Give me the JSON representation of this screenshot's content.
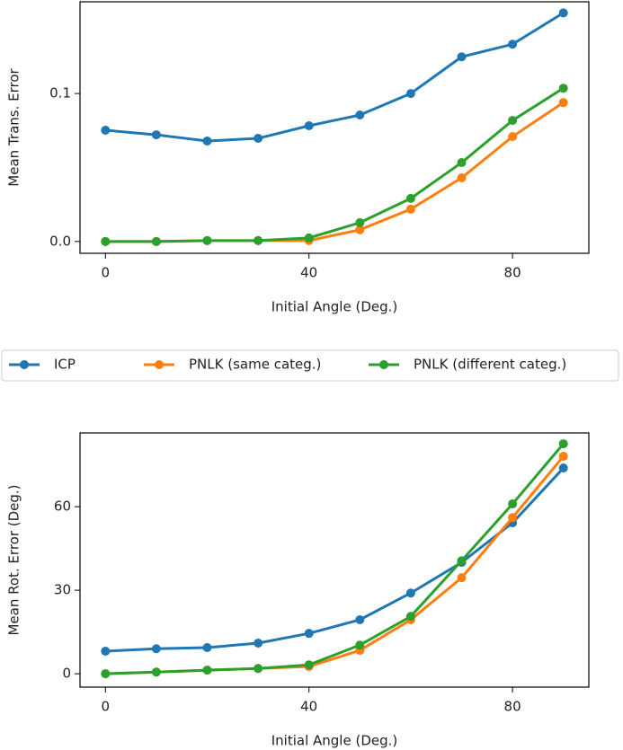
{
  "chart_data": [
    {
      "type": "line",
      "xlabel": "Initial Angle (Deg.)",
      "ylabel": "Mean Trans. Error",
      "x": [
        0,
        10,
        20,
        30,
        40,
        50,
        60,
        70,
        80,
        90
      ],
      "xlim": [
        -5,
        95
      ],
      "xticks": [
        0,
        40,
        80
      ],
      "ylim": [
        -0.008,
        0.162
      ],
      "yticks": [
        {
          "value": 0,
          "label": "0.0"
        },
        0.1
      ],
      "series": [
        {
          "name": "ICP",
          "color": "#1f77b4",
          "values": [
            0.0752,
            0.0721,
            0.0679,
            0.0697,
            0.0782,
            0.0855,
            0.1,
            0.1248,
            0.1333,
            0.1545
          ]
        },
        {
          "name": "PNLK (same categ.)",
          "color": "#ff7f0e",
          "values": [
            0,
            0,
            0.0006,
            0.0006,
            0.0006,
            0.0079,
            0.0218,
            0.043,
            0.0709,
            0.0939
          ]
        },
        {
          "name": "PNLK (different categ.)",
          "color": "#2ca02c",
          "values": [
            0,
            0,
            0.0006,
            0.0006,
            0.0024,
            0.0127,
            0.0291,
            0.0533,
            0.0818,
            0.1036
          ]
        }
      ]
    },
    {
      "type": "line",
      "xlabel": "Initial Angle (Deg.)",
      "ylabel": "Mean Rot. Error (Deg.)",
      "x": [
        0,
        10,
        20,
        30,
        40,
        50,
        60,
        70,
        80,
        90
      ],
      "xlim": [
        -5,
        95
      ],
      "xticks": [
        0,
        40,
        80
      ],
      "ylim": [
        -4.8,
        86.5
      ],
      "yticks": [
        0,
        30,
        60
      ],
      "series": [
        {
          "color": "#1f77b4",
          "values": [
            8.1,
            9.0,
            9.4,
            11.0,
            14.5,
            19.4,
            29.0,
            40.0,
            54.2,
            73.9
          ]
        },
        {
          "color": "#ff7f0e",
          "values": [
            0,
            0.6,
            1.3,
            1.9,
            2.6,
            8.4,
            19.4,
            34.5,
            56.1,
            78.1
          ]
        },
        {
          "color": "#2ca02c",
          "values": [
            0,
            0.6,
            1.3,
            1.9,
            3.2,
            10.3,
            20.6,
            40.6,
            61,
            82.6
          ]
        }
      ]
    }
  ]
}
